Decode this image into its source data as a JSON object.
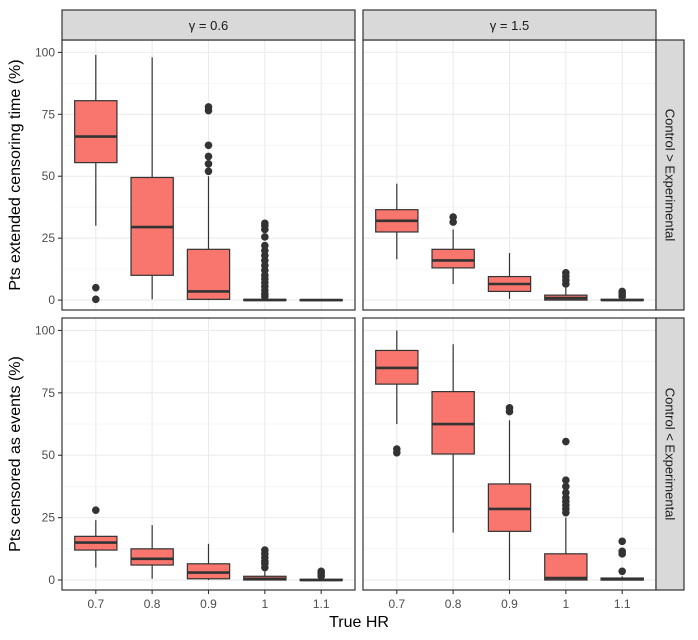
{
  "chart_data": {
    "type": "boxplot",
    "xlabel": "True HR",
    "x_categories": [
      "0.7",
      "0.8",
      "0.9",
      "1",
      "1.1"
    ],
    "columns": [
      {
        "label": "γ = 0.6",
        "symbol": "γ",
        "value": "= 0.6"
      },
      {
        "label": "γ = 1.5",
        "symbol": "γ",
        "value": "= 1.5"
      }
    ],
    "rows": [
      {
        "strip": "Control > Experimental",
        "ylabel": "Pts extended censoring time (%)",
        "ylim": [
          -4,
          105
        ],
        "yticks": [
          0,
          25,
          50,
          75,
          100
        ]
      },
      {
        "strip": "Control < Experimental",
        "ylabel": "Pts censored as events (%)",
        "ylim": [
          -4,
          105
        ],
        "yticks": [
          0,
          25,
          50,
          75,
          100
        ]
      }
    ],
    "fill_color": "#F8766D",
    "panels": [
      {
        "row": 0,
        "col": 0,
        "boxes": [
          {
            "x": "0.7",
            "whislo": 30,
            "q1": 55.5,
            "med": 66,
            "q3": 80.5,
            "whishi": 99,
            "outliers": [
              5,
              0.3
            ]
          },
          {
            "x": "0.8",
            "whislo": 0.3,
            "q1": 10,
            "med": 29.5,
            "q3": 49.5,
            "whishi": 98,
            "outliers": []
          },
          {
            "x": "0.9",
            "whislo": 0,
            "q1": 0.3,
            "med": 3.5,
            "q3": 20.5,
            "whishi": 50,
            "outliers": [
              52,
              55,
              58,
              62.5,
              76.5,
              78
            ]
          },
          {
            "x": "1",
            "whislo": 0,
            "q1": 0,
            "med": 0,
            "q3": 0.3,
            "whishi": 0.5,
            "outliers": [
              1.5,
              2.5,
              4,
              5.5,
              7,
              8.5,
              10,
              12,
              14,
              16,
              18,
              20,
              22,
              25.5,
              28.5,
              30,
              31
            ]
          },
          {
            "x": "1.1",
            "whislo": 0,
            "q1": 0,
            "med": 0,
            "q3": 0.1,
            "whishi": 0.2,
            "outliers": []
          }
        ]
      },
      {
        "row": 0,
        "col": 1,
        "boxes": [
          {
            "x": "0.7",
            "whislo": 16.5,
            "q1": 27.5,
            "med": 32,
            "q3": 36.5,
            "whishi": 47,
            "outliers": []
          },
          {
            "x": "0.8",
            "whislo": 6.5,
            "q1": 13,
            "med": 16,
            "q3": 20.5,
            "whishi": 28.5,
            "outliers": [
              31.5,
              33.5
            ]
          },
          {
            "x": "0.9",
            "whislo": 0.5,
            "q1": 3.5,
            "med": 6.5,
            "q3": 9.5,
            "whishi": 19,
            "outliers": []
          },
          {
            "x": "1",
            "whislo": 0,
            "q1": 0,
            "med": 0.8,
            "q3": 2,
            "whishi": 5,
            "outliers": [
              6.5,
              8,
              9.5,
              11
            ]
          },
          {
            "x": "1.1",
            "whislo": 0,
            "q1": 0,
            "med": 0,
            "q3": 0.3,
            "whishi": 0.8,
            "outliers": [
              1.5,
              2.5,
              3.5
            ]
          }
        ]
      },
      {
        "row": 1,
        "col": 0,
        "boxes": [
          {
            "x": "0.7",
            "whislo": 5,
            "q1": 12,
            "med": 15,
            "q3": 17.5,
            "whishi": 24,
            "outliers": [
              28
            ]
          },
          {
            "x": "0.8",
            "whislo": 0.5,
            "q1": 6,
            "med": 8.5,
            "q3": 12.5,
            "whishi": 22,
            "outliers": []
          },
          {
            "x": "0.9",
            "whislo": 0,
            "q1": 0.5,
            "med": 3,
            "q3": 6.5,
            "whishi": 14.5,
            "outliers": []
          },
          {
            "x": "1",
            "whislo": 0,
            "q1": 0,
            "med": 0.5,
            "q3": 1.5,
            "whishi": 3.5,
            "outliers": [
              5,
              6.5,
              7.5,
              9,
              10.5,
              12
            ]
          },
          {
            "x": "1.1",
            "whislo": 0,
            "q1": 0,
            "med": 0,
            "q3": 0.3,
            "whishi": 0.8,
            "outliers": [
              1.5,
              2.5,
              3.5
            ]
          }
        ]
      },
      {
        "row": 1,
        "col": 1,
        "boxes": [
          {
            "x": "0.7",
            "whislo": 62.5,
            "q1": 78.5,
            "med": 85,
            "q3": 92,
            "whishi": 100,
            "outliers": [
              51,
              52.5
            ]
          },
          {
            "x": "0.8",
            "whislo": 19,
            "q1": 50.5,
            "med": 62.5,
            "q3": 75.5,
            "whishi": 94.5,
            "outliers": []
          },
          {
            "x": "0.9",
            "whislo": 0,
            "q1": 19.5,
            "med": 28.5,
            "q3": 38.5,
            "whishi": 64,
            "outliers": [
              67.5,
              69
            ]
          },
          {
            "x": "1",
            "whislo": 0,
            "q1": 0,
            "med": 0.8,
            "q3": 10.5,
            "whishi": 25,
            "outliers": [
              27,
              28.5,
              30,
              31.5,
              33,
              35,
              37.5,
              40,
              55.5
            ]
          },
          {
            "x": "1.1",
            "whislo": 0,
            "q1": 0,
            "med": 0.3,
            "q3": 0.8,
            "whishi": 1.5,
            "outliers": [
              3.5,
              10.5,
              11.5,
              15.5
            ]
          }
        ]
      }
    ]
  }
}
